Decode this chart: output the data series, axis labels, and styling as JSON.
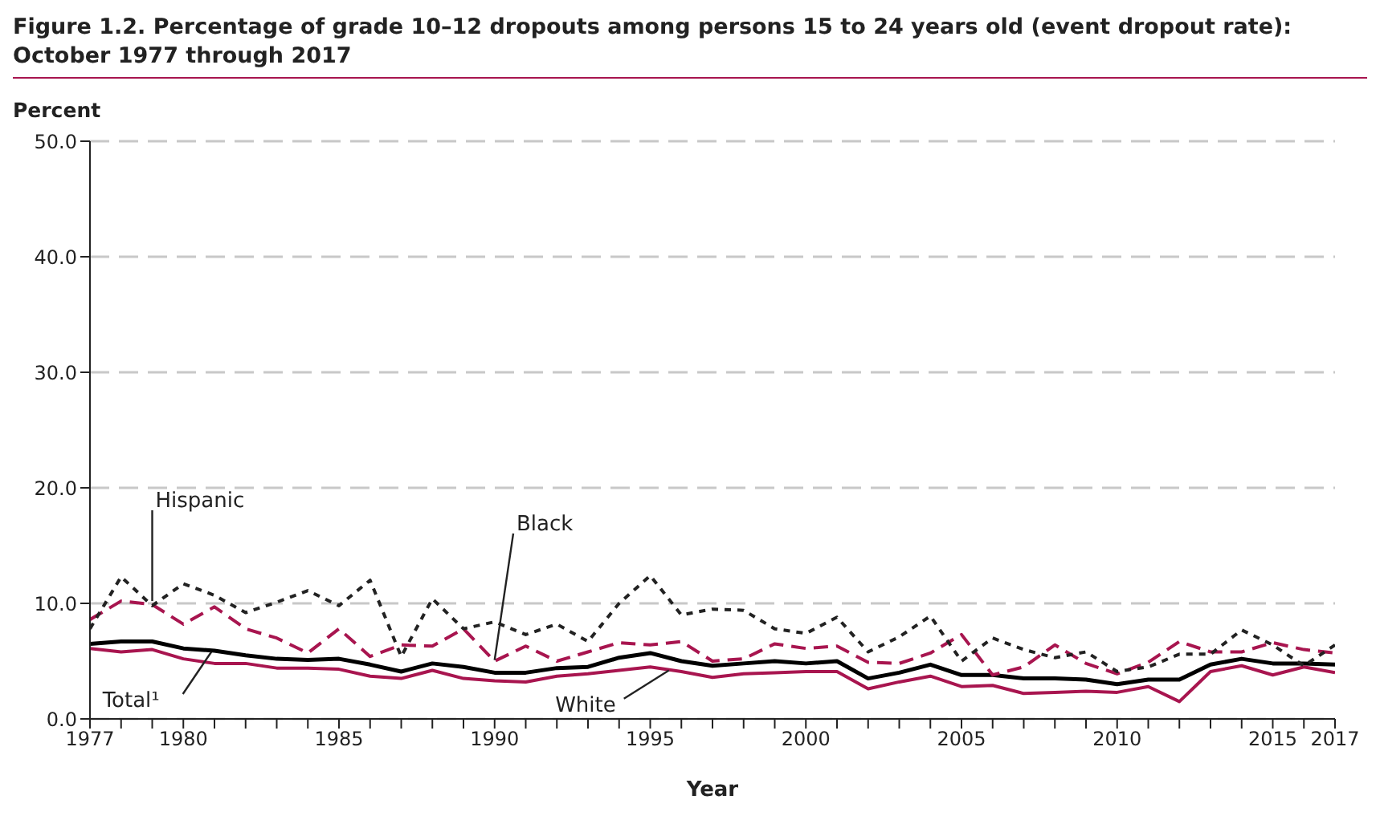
{
  "chart_data": {
    "type": "line",
    "title": "Figure 1.2.   Percentage of grade 10–12 dropouts among persons 15 to 24 years old (event dropout rate): October 1977 through 2017",
    "xlabel": "Year",
    "ylabel": "Percent",
    "x": [
      1977,
      1978,
      1979,
      1980,
      1981,
      1982,
      1983,
      1984,
      1985,
      1986,
      1987,
      1988,
      1989,
      1990,
      1991,
      1992,
      1993,
      1994,
      1995,
      1996,
      1997,
      1998,
      1999,
      2000,
      2001,
      2002,
      2003,
      2004,
      2005,
      2006,
      2007,
      2008,
      2009,
      2010,
      2011,
      2012,
      2013,
      2014,
      2015,
      2016,
      2017
    ],
    "series": [
      {
        "name": "Total¹",
        "color": "#000000",
        "line_style": "solid",
        "values": [
          6.5,
          6.7,
          6.7,
          6.1,
          5.9,
          5.5,
          5.2,
          5.1,
          5.2,
          4.7,
          4.1,
          4.8,
          4.5,
          4.0,
          4.0,
          4.4,
          4.5,
          5.3,
          5.7,
          5.0,
          4.6,
          4.8,
          5.0,
          4.8,
          5.0,
          3.5,
          4.0,
          4.7,
          3.8,
          3.8,
          3.5,
          3.5,
          3.4,
          3.0,
          3.4,
          3.4,
          4.7,
          5.2,
          4.8,
          4.8,
          4.7
        ]
      },
      {
        "name": "White",
        "color": "#a8154f",
        "line_style": "solid",
        "values": [
          6.1,
          5.8,
          6.0,
          5.2,
          4.8,
          4.8,
          4.4,
          4.4,
          4.3,
          3.7,
          3.5,
          4.2,
          3.5,
          3.3,
          3.2,
          3.7,
          3.9,
          4.2,
          4.5,
          4.1,
          3.6,
          3.9,
          4.0,
          4.1,
          4.1,
          2.6,
          3.2,
          3.7,
          2.8,
          2.9,
          2.2,
          2.3,
          2.4,
          2.3,
          2.8,
          1.5,
          4.1,
          4.6,
          3.8,
          4.5,
          4.0
        ]
      },
      {
        "name": "Black",
        "color": "#a8154f",
        "line_style": "dashed",
        "values": [
          8.6,
          10.2,
          9.9,
          8.2,
          9.7,
          7.8,
          7.0,
          5.7,
          7.8,
          5.4,
          6.4,
          6.3,
          7.8,
          5.0,
          6.3,
          5.0,
          5.8,
          6.6,
          6.4,
          6.7,
          5.0,
          5.2,
          6.5,
          6.1,
          6.3,
          4.9,
          4.8,
          5.7,
          7.3,
          3.8,
          4.5,
          6.4,
          4.8,
          3.9,
          4.9,
          6.7,
          5.8,
          5.8,
          6.6,
          6.0,
          5.7
        ]
      },
      {
        "name": "Hispanic",
        "color": "#222222",
        "line_style": "dotted",
        "values": [
          7.8,
          12.3,
          9.8,
          11.7,
          10.7,
          9.2,
          10.1,
          11.1,
          9.8,
          12.0,
          5.4,
          10.4,
          7.8,
          8.4,
          7.3,
          8.2,
          6.7,
          10.0,
          12.4,
          9.0,
          9.5,
          9.4,
          7.8,
          7.4,
          8.8,
          5.8,
          7.1,
          8.9,
          5.0,
          7.0,
          6.0,
          5.3,
          5.8,
          4.1,
          4.5,
          5.6,
          5.6,
          7.7,
          6.4,
          4.6,
          6.4
        ]
      }
    ],
    "xlim": [
      1977,
      2017
    ],
    "xticks": [
      1977,
      {
        "value": 1978,
        "label": null
      },
      {
        "value": 1979,
        "label": null
      },
      1980,
      {
        "value": 1981,
        "label": null
      },
      {
        "value": 1982,
        "label": null
      },
      {
        "value": 1983,
        "label": null
      },
      {
        "value": 1984,
        "label": null
      },
      1985,
      {
        "value": 1986,
        "label": null
      },
      {
        "value": 1987,
        "label": null
      },
      {
        "value": 1988,
        "label": null
      },
      {
        "value": 1989,
        "label": null
      },
      1990,
      {
        "value": 1991,
        "label": null
      },
      {
        "value": 1992,
        "label": null
      },
      {
        "value": 1993,
        "label": null
      },
      {
        "value": 1994,
        "label": null
      },
      1995,
      {
        "value": 1996,
        "label": null
      },
      {
        "value": 1997,
        "label": null
      },
      {
        "value": 1998,
        "label": null
      },
      {
        "value": 1999,
        "label": null
      },
      2000,
      {
        "value": 2001,
        "label": null
      },
      {
        "value": 2002,
        "label": null
      },
      {
        "value": 2003,
        "label": null
      },
      {
        "value": 2004,
        "label": null
      },
      2005,
      {
        "value": 2006,
        "label": null
      },
      {
        "value": 2007,
        "label": null
      },
      {
        "value": 2008,
        "label": null
      },
      {
        "value": 2009,
        "label": null
      },
      2010,
      {
        "value": 2011,
        "label": null
      },
      {
        "value": 2012,
        "label": null
      },
      {
        "value": 2013,
        "label": null
      },
      {
        "value": 2014,
        "label": null
      },
      2015,
      {
        "value": 2016,
        "label": null
      },
      2017
    ],
    "ylim": [
      0,
      50
    ],
    "yticks": [
      {
        "value": 0,
        "label": "0.0"
      },
      {
        "value": 10,
        "label": "10.0"
      },
      {
        "value": 20,
        "label": "20.0"
      },
      {
        "value": 30,
        "label": "30.0"
      },
      {
        "value": 40,
        "label": "40.0"
      },
      {
        "value": 50,
        "label": "50.0"
      }
    ],
    "grid": "y",
    "legend": false,
    "marker": "none"
  }
}
